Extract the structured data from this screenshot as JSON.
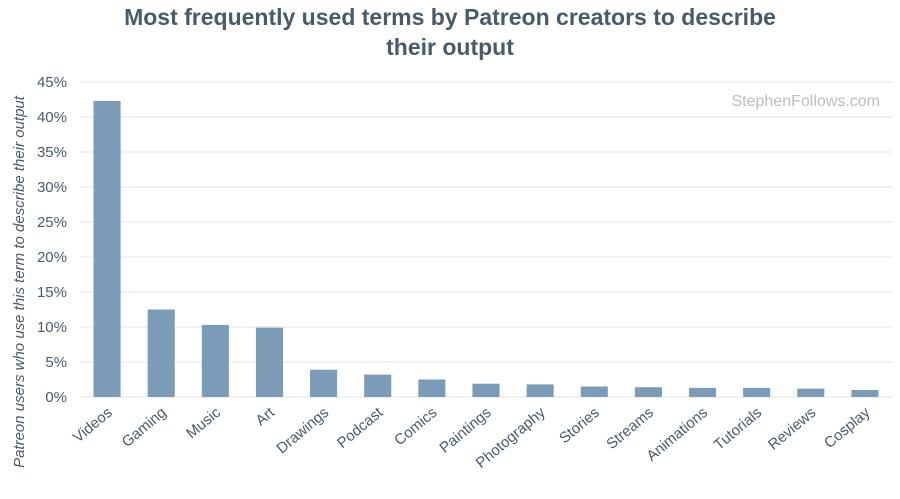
{
  "chart_data": {
    "type": "bar",
    "title_lines": [
      "Most frequently used terms by Patreon creators to describe",
      "their output"
    ],
    "ylabel": "Patreon users who use this term to describe their output",
    "xlabel": "",
    "watermark": "StephenFollows.com",
    "categories": [
      "Videos",
      "Gaming",
      "Music",
      "Art",
      "Drawings",
      "Podcast",
      "Comics",
      "Paintings",
      "Photography",
      "Stories",
      "Streams",
      "Animations",
      "Tutorials",
      "Reviews",
      "Cosplay"
    ],
    "values": [
      42.3,
      12.5,
      10.3,
      9.9,
      3.9,
      3.2,
      2.5,
      1.9,
      1.8,
      1.5,
      1.4,
      1.3,
      1.3,
      1.2,
      1.0
    ],
    "ylim": [
      0,
      45
    ],
    "yticks": [
      "0%",
      "5%",
      "10%",
      "15%",
      "20%",
      "25%",
      "30%",
      "35%",
      "40%",
      "45%"
    ],
    "grid": true,
    "bar_color": "#7a9cb8",
    "text_color": "#4a5a6a"
  }
}
